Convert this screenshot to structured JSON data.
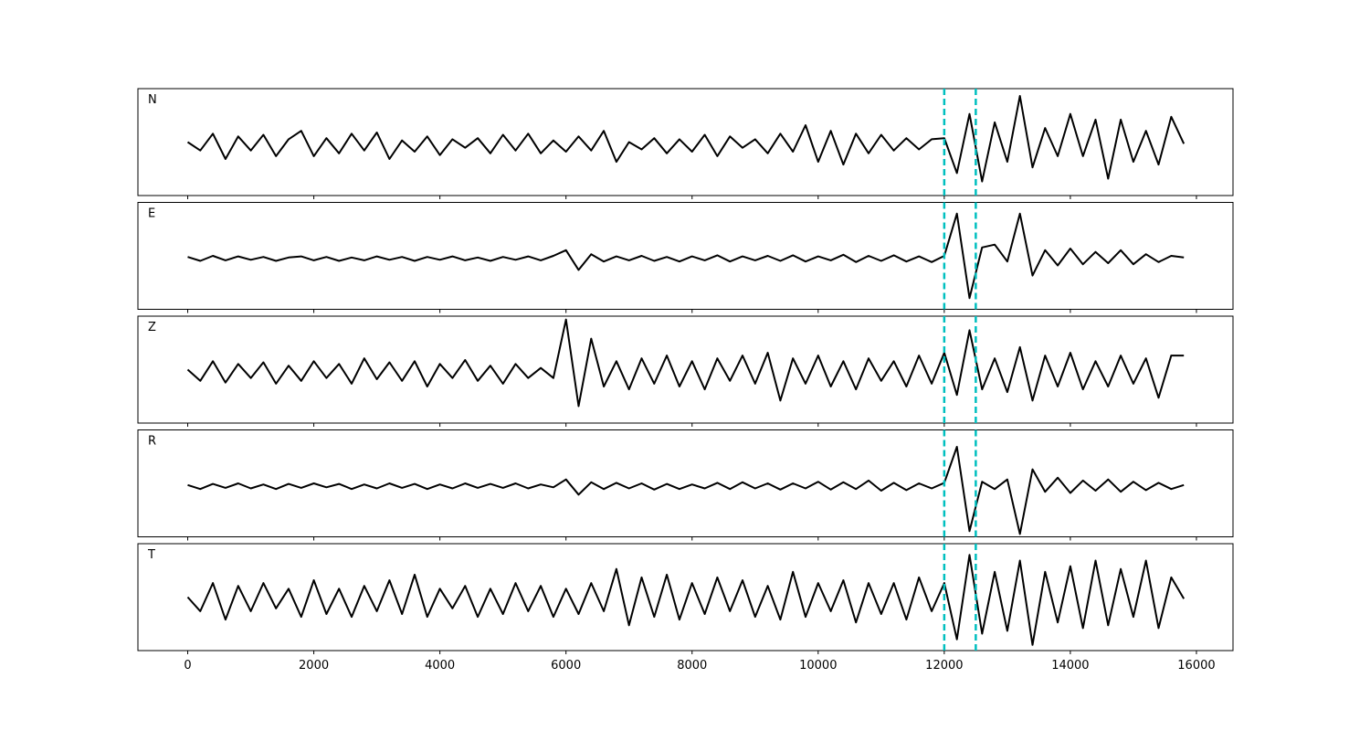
{
  "chart_data": {
    "type": "line",
    "panels": true,
    "color": "#000000",
    "x": [
      0,
      200,
      400,
      600,
      800,
      1000,
      1200,
      1400,
      1600,
      1800,
      2000,
      2200,
      2400,
      2600,
      2800,
      3000,
      3200,
      3400,
      3600,
      3800,
      4000,
      4200,
      4400,
      4600,
      4800,
      5000,
      5200,
      5400,
      5600,
      5800,
      6000,
      6200,
      6400,
      6600,
      6800,
      7000,
      7200,
      7400,
      7600,
      7800,
      8000,
      8200,
      8400,
      8600,
      8800,
      9000,
      9200,
      9400,
      9600,
      9800,
      10000,
      10200,
      10400,
      10600,
      10800,
      11000,
      11200,
      11400,
      11600,
      11800,
      12000,
      12200,
      12400,
      12600,
      12800,
      13000,
      13200,
      13400,
      13600,
      13800,
      14000,
      14200,
      14400,
      14600,
      14800,
      15000,
      15200,
      15400,
      15600,
      15800
    ],
    "xlim": [
      -790,
      16580
    ],
    "xticks": [
      0,
      2000,
      4000,
      6000,
      8000,
      10000,
      12000,
      14000,
      16000
    ],
    "ylim": [
      -0.9,
      1
    ],
    "vlines": [
      12000,
      12500
    ],
    "vline_color": "#00bfbf",
    "series": [
      {
        "name": "N",
        "values": [
          0.05,
          -0.1,
          0.2,
          -0.25,
          0.15,
          -0.1,
          0.18,
          -0.2,
          0.1,
          0.25,
          -0.2,
          0.12,
          -0.15,
          0.2,
          -0.1,
          0.22,
          -0.25,
          0.08,
          -0.12,
          0.15,
          -0.18,
          0.1,
          -0.05,
          0.12,
          -0.15,
          0.18,
          -0.1,
          0.2,
          -0.15,
          0.08,
          -0.12,
          0.15,
          -0.1,
          0.25,
          -0.3,
          0.05,
          -0.08,
          0.12,
          -0.15,
          0.1,
          -0.12,
          0.18,
          -0.2,
          0.15,
          -0.05,
          0.1,
          -0.15,
          0.2,
          -0.12,
          0.35,
          -0.3,
          0.25,
          -0.35,
          0.2,
          -0.15,
          0.18,
          -0.1,
          0.12,
          -0.08,
          0.1,
          0.12,
          -0.5,
          0.55,
          -0.65,
          0.4,
          -0.3,
          0.87,
          -0.4,
          0.3,
          -0.2,
          0.55,
          -0.2,
          0.45,
          -0.6,
          0.45,
          -0.3,
          0.25,
          -0.35,
          0.5,
          0.02
        ]
      },
      {
        "name": "E",
        "values": [
          0.03,
          -0.04,
          0.05,
          -0.03,
          0.04,
          -0.02,
          0.03,
          -0.04,
          0.02,
          0.04,
          -0.03,
          0.03,
          -0.04,
          0.02,
          -0.03,
          0.04,
          -0.02,
          0.03,
          -0.04,
          0.03,
          -0.02,
          0.04,
          -0.03,
          0.02,
          -0.04,
          0.03,
          -0.02,
          0.04,
          -0.03,
          0.05,
          0.15,
          -0.2,
          0.08,
          -0.05,
          0.04,
          -0.03,
          0.05,
          -0.04,
          0.03,
          -0.05,
          0.04,
          -0.03,
          0.06,
          -0.05,
          0.04,
          -0.03,
          0.05,
          -0.04,
          0.06,
          -0.05,
          0.04,
          -0.03,
          0.07,
          -0.06,
          0.05,
          -0.04,
          0.06,
          -0.05,
          0.04,
          -0.06,
          0.05,
          0.8,
          -0.7,
          0.2,
          0.25,
          -0.05,
          0.8,
          -0.3,
          0.15,
          -0.12,
          0.18,
          -0.1,
          0.12,
          -0.08,
          0.15,
          -0.1,
          0.08,
          -0.06,
          0.05,
          0.02
        ]
      },
      {
        "name": "Z",
        "values": [
          0.05,
          -0.15,
          0.2,
          -0.18,
          0.15,
          -0.1,
          0.18,
          -0.2,
          0.12,
          -0.15,
          0.2,
          -0.1,
          0.15,
          -0.2,
          0.25,
          -0.12,
          0.18,
          -0.15,
          0.2,
          -0.25,
          0.15,
          -0.1,
          0.22,
          -0.15,
          0.12,
          -0.2,
          0.15,
          -0.1,
          0.08,
          -0.1,
          0.94,
          -0.6,
          0.6,
          -0.25,
          0.2,
          -0.3,
          0.25,
          -0.2,
          0.3,
          -0.25,
          0.2,
          -0.3,
          0.25,
          -0.15,
          0.3,
          -0.2,
          0.35,
          -0.5,
          0.25,
          -0.2,
          0.3,
          -0.25,
          0.2,
          -0.3,
          0.25,
          -0.15,
          0.2,
          -0.25,
          0.3,
          -0.2,
          0.35,
          -0.4,
          0.75,
          -0.3,
          0.25,
          -0.35,
          0.45,
          -0.5,
          0.3,
          -0.25,
          0.35,
          -0.3,
          0.2,
          -0.25,
          0.3,
          -0.2,
          0.25,
          -0.45,
          0.3,
          0.3
        ]
      },
      {
        "name": "R",
        "values": [
          0.02,
          -0.05,
          0.04,
          -0.03,
          0.05,
          -0.04,
          0.03,
          -0.05,
          0.04,
          -0.03,
          0.05,
          -0.02,
          0.04,
          -0.05,
          0.03,
          -0.04,
          0.05,
          -0.03,
          0.04,
          -0.05,
          0.03,
          -0.04,
          0.05,
          -0.03,
          0.04,
          -0.03,
          0.05,
          -0.04,
          0.03,
          -0.02,
          0.12,
          -0.15,
          0.07,
          -0.05,
          0.06,
          -0.04,
          0.05,
          -0.06,
          0.04,
          -0.05,
          0.03,
          -0.04,
          0.06,
          -0.05,
          0.07,
          -0.04,
          0.05,
          -0.06,
          0.05,
          -0.04,
          0.08,
          -0.06,
          0.07,
          -0.05,
          0.1,
          -0.08,
          0.06,
          -0.07,
          0.05,
          -0.04,
          0.06,
          0.7,
          -0.8,
          0.08,
          -0.05,
          0.12,
          -0.85,
          0.3,
          -0.1,
          0.15,
          -0.12,
          0.1,
          -0.08,
          0.12,
          -0.1,
          0.08,
          -0.07,
          0.06,
          -0.05,
          0.02
        ]
      },
      {
        "name": "T",
        "values": [
          0.05,
          -0.2,
          0.3,
          -0.35,
          0.25,
          -0.2,
          0.3,
          -0.15,
          0.2,
          -0.3,
          0.35,
          -0.25,
          0.2,
          -0.3,
          0.25,
          -0.2,
          0.35,
          -0.25,
          0.45,
          -0.3,
          0.2,
          -0.15,
          0.25,
          -0.3,
          0.2,
          -0.25,
          0.3,
          -0.2,
          0.25,
          -0.3,
          0.2,
          -0.25,
          0.3,
          -0.2,
          0.55,
          -0.45,
          0.4,
          -0.3,
          0.45,
          -0.35,
          0.3,
          -0.25,
          0.4,
          -0.2,
          0.35,
          -0.3,
          0.25,
          -0.35,
          0.5,
          -0.3,
          0.3,
          -0.2,
          0.35,
          -0.4,
          0.3,
          -0.25,
          0.3,
          -0.35,
          0.4,
          -0.2,
          0.3,
          -0.7,
          0.8,
          -0.6,
          0.5,
          -0.55,
          0.7,
          -0.8,
          0.5,
          -0.4,
          0.6,
          -0.5,
          0.7,
          -0.45,
          0.55,
          -0.3,
          0.7,
          -0.5,
          0.4,
          0.02
        ]
      }
    ]
  }
}
